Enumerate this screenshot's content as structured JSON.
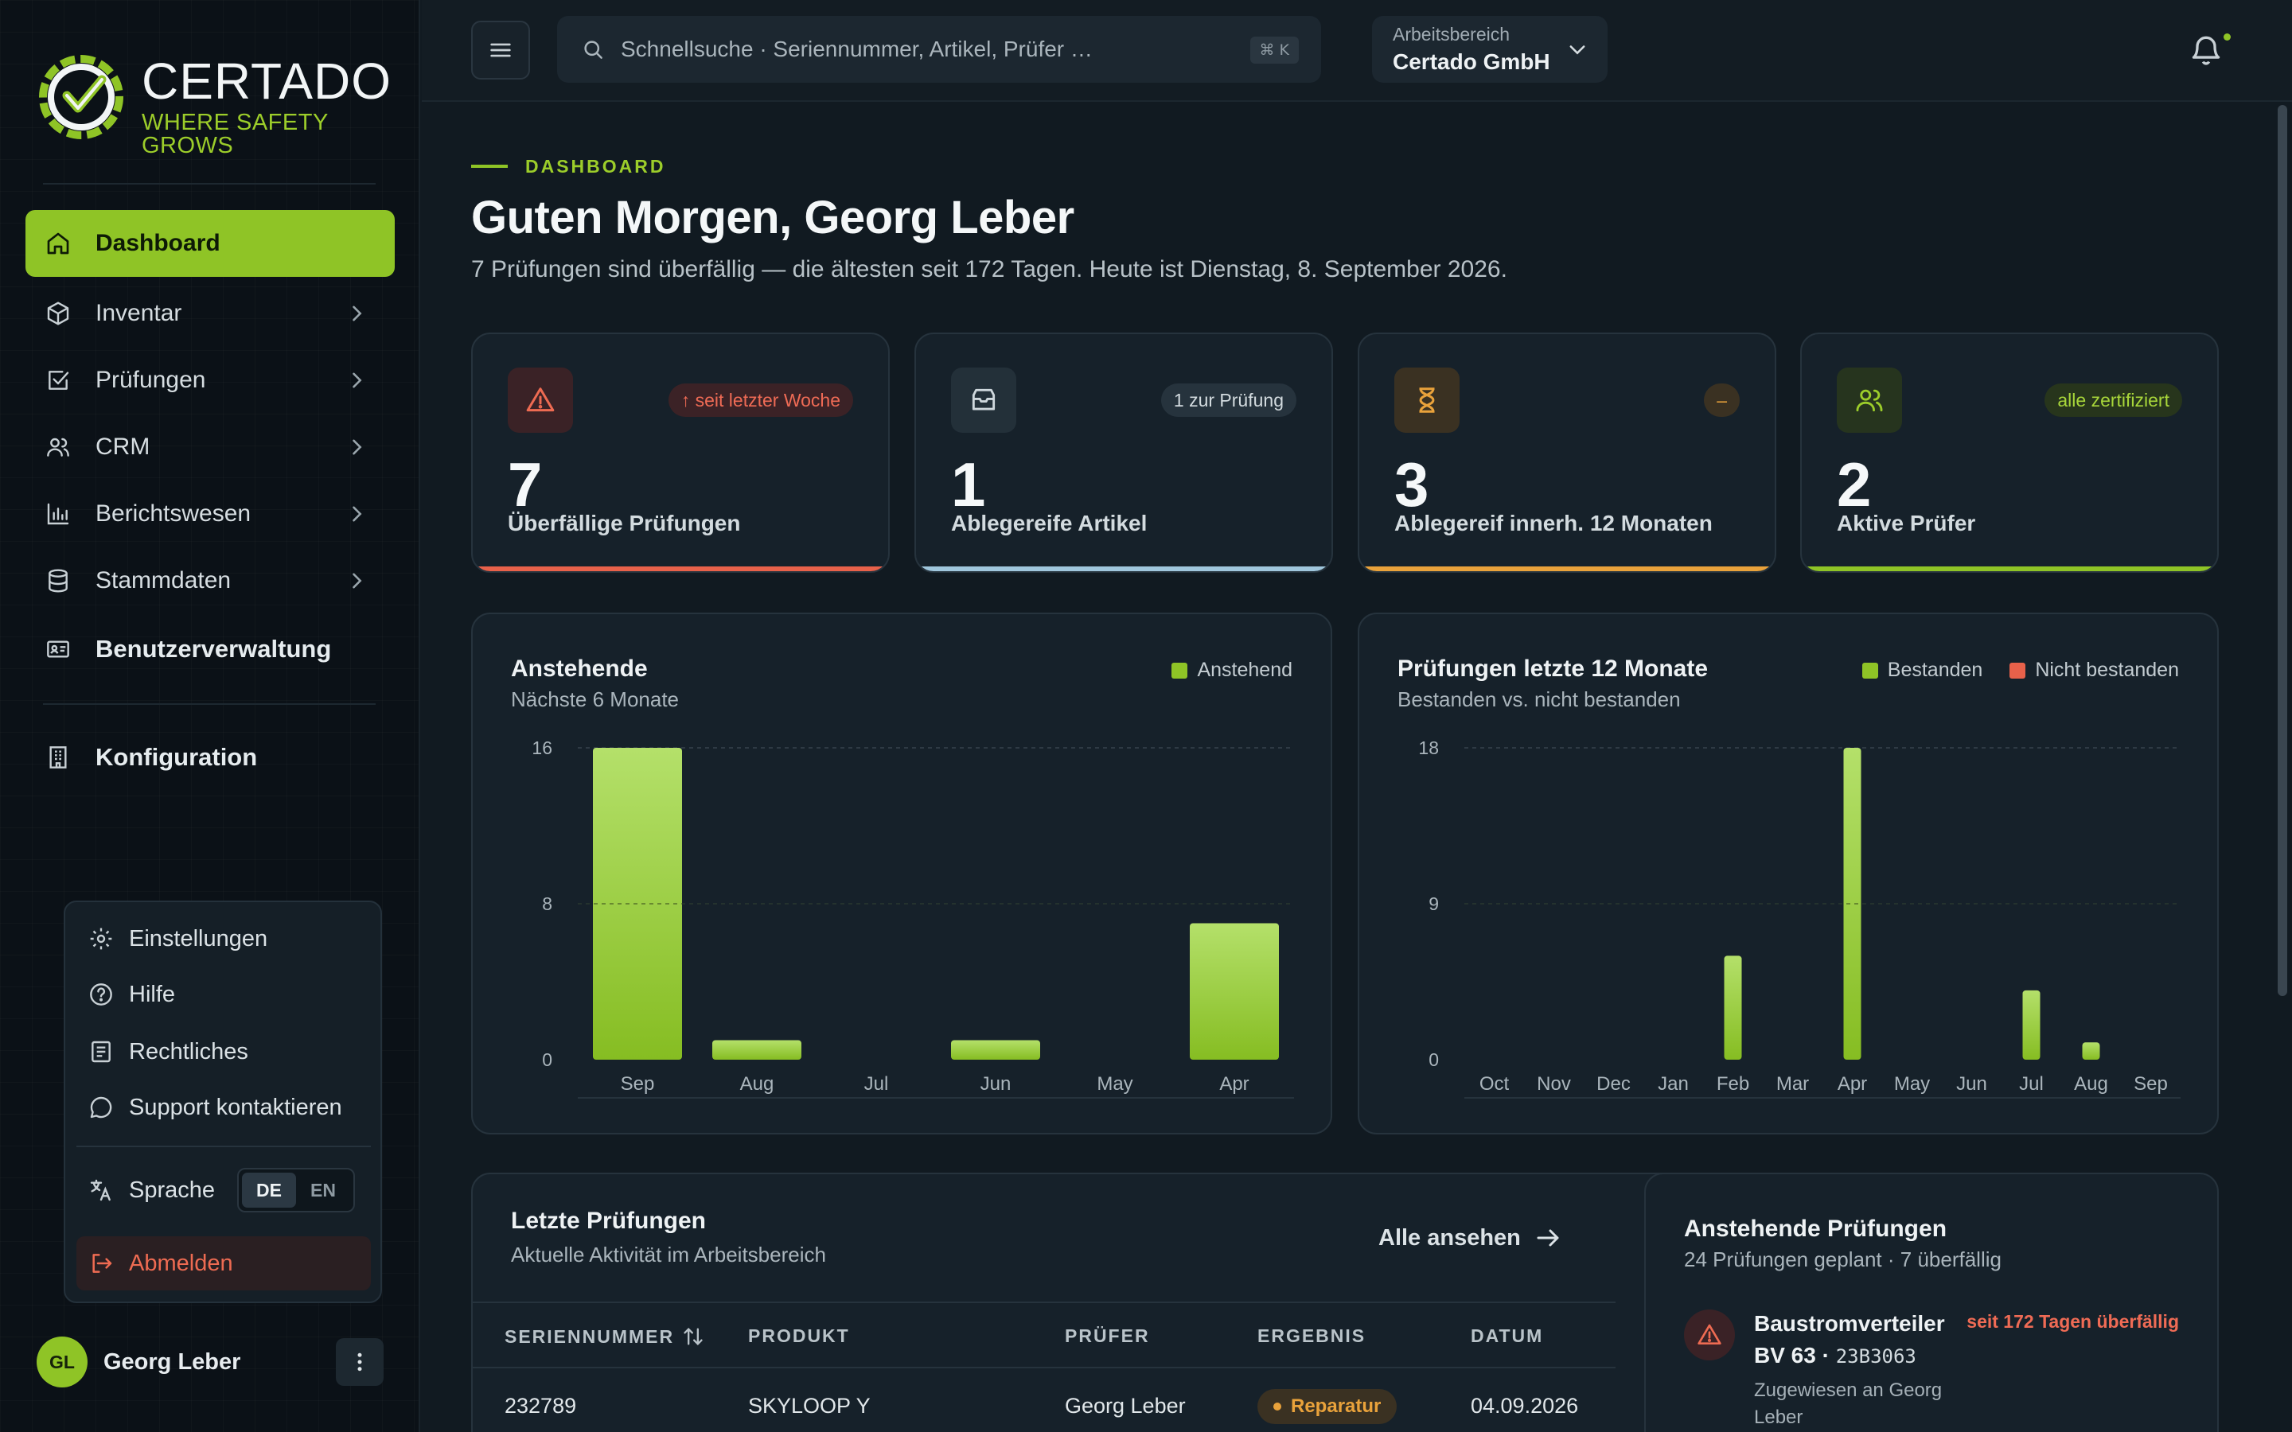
{
  "brand": {
    "name": "CERTADO",
    "tagline": "WHERE SAFETY GROWS"
  },
  "sidebar": {
    "items": [
      {
        "label": "Dashboard",
        "icon": "home-icon",
        "active": true
      },
      {
        "label": "Inventar",
        "icon": "box-icon"
      },
      {
        "label": "Prüfungen",
        "icon": "checkbox-icon"
      },
      {
        "label": "CRM",
        "icon": "users-icon"
      },
      {
        "label": "Berichtswesen",
        "icon": "bar-chart-icon"
      },
      {
        "label": "Stammdaten",
        "icon": "database-icon"
      },
      {
        "label": "Benutzerverwaltung",
        "icon": "id-card-icon"
      },
      {
        "label": "Konfiguration",
        "icon": "building-icon"
      }
    ]
  },
  "user_menu": {
    "settings": "Einstellungen",
    "help": "Hilfe",
    "legal": "Rechtliches",
    "support": "Support kontaktieren",
    "language": "Sprache",
    "lang_de": "DE",
    "lang_en": "EN",
    "logout": "Abmelden"
  },
  "user": {
    "initials": "GL",
    "name": "Georg Leber"
  },
  "topbar": {
    "search_placeholder": "Schnellsuche · Seriennummer, Artikel, Prüfer …",
    "search_shortcut": "⌘ K",
    "workspace_label": "Arbeitsbereich",
    "workspace_value": "Certado GmbH"
  },
  "header": {
    "eyebrow": "DASHBOARD",
    "greeting": "Guten Morgen, Georg Leber",
    "subline": "7 Prüfungen sind überfällig — die ältesten seit 172 Tagen. Heute ist Dienstag, 8. September 2026."
  },
  "kpis": [
    {
      "value": "7",
      "label": "Überfällige Prüfungen",
      "badge": "↑ seit letzter Woche",
      "icon": "alert-triangle-icon",
      "accent": "#e8614a"
    },
    {
      "value": "1",
      "label": "Ablegereife Artikel",
      "badge": "1 zur Prüfung",
      "icon": "inbox-icon",
      "accent": "#9fc6dc"
    },
    {
      "value": "3",
      "label": "Ablegereif innerh. 12 Monaten",
      "badge": "–",
      "icon": "hourglass-icon",
      "accent": "#e9a23b"
    },
    {
      "value": "2",
      "label": "Aktive Prüfer",
      "badge": "alle zertifiziert",
      "icon": "users-icon",
      "accent": "#8fc426"
    }
  ],
  "chart_data": [
    {
      "type": "bar",
      "title": "Anstehende",
      "subtitle": "Nächste 6 Monate",
      "categories": [
        "Sep",
        "Aug",
        "Jul",
        "Jun",
        "May",
        "Apr"
      ],
      "series": [
        {
          "name": "Anstehend",
          "values": [
            16,
            1,
            0,
            1,
            0,
            7
          ],
          "color": "#8fc426"
        }
      ],
      "yticks": [
        "0",
        "8",
        "16"
      ],
      "ylim": [
        0,
        16
      ]
    },
    {
      "type": "bar",
      "title": "Prüfungen letzte 12 Monate",
      "subtitle": "Bestanden vs. nicht bestanden",
      "categories": [
        "Oct",
        "Nov",
        "Dec",
        "Jan",
        "Feb",
        "Mar",
        "Apr",
        "May",
        "Jun",
        "Jul",
        "Aug",
        "Sep"
      ],
      "series": [
        {
          "name": "Bestanden",
          "values": [
            0,
            0,
            0,
            0,
            6,
            0,
            18,
            0,
            0,
            4,
            1,
            0
          ],
          "color": "#8fc426"
        },
        {
          "name": "Nicht bestanden",
          "values": [
            0,
            0,
            0,
            0,
            0,
            0,
            0,
            0,
            0,
            0,
            0,
            0
          ],
          "color": "#e8614a"
        }
      ],
      "yticks": [
        "0",
        "9",
        "18"
      ],
      "ylim": [
        0,
        18
      ]
    }
  ],
  "recent": {
    "title": "Letzte Prüfungen",
    "subtitle": "Aktuelle Aktivität im Arbeitsbereich",
    "view_all": "Alle ansehen",
    "columns": [
      "SERIENNUMMER",
      "PRODUKT",
      "PRÜFER",
      "ERGEBNIS",
      "DATUM"
    ],
    "rows": [
      {
        "serial": "232789",
        "product": "SKYLOOP Y",
        "inspector": "Georg Leber",
        "result": "Reparatur",
        "date": "04.09.2026"
      }
    ]
  },
  "upcoming": {
    "title": "Anstehende Prüfungen",
    "subtitle": "24 Prüfungen geplant · 7 überfällig",
    "item": {
      "name": "Baustromverteiler",
      "code_prefix": "BV 63 ·",
      "code": "23B3063",
      "status": "seit 172 Tagen überfällig",
      "assigned": "Zugewiesen an Georg Leber"
    }
  }
}
